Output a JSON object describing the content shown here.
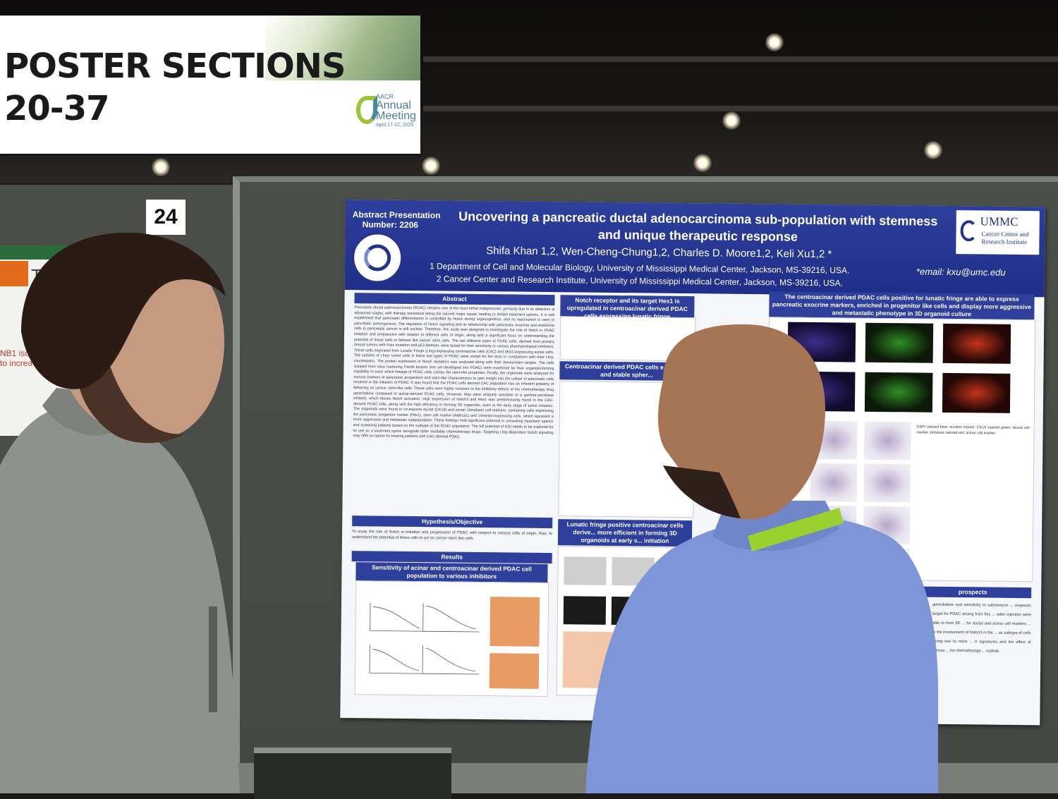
{
  "banner": {
    "line1": "POSTER SECTIONS",
    "line2": "20-37",
    "logo_small": "AACR",
    "logo_line1": "Annual",
    "logo_line2": "Meeting",
    "logo_dates": "April 17-22, 2025"
  },
  "board_number": "24",
  "left_poster": {
    "fragment1": "Th",
    "fragment2": "NB1 isol",
    "fragment3": "to increa"
  },
  "poster": {
    "abstract_label": "Abstract Presentation",
    "abstract_number": "Number: 2206",
    "title_line1": "Uncovering a pancreatic ductal adenocarcinoma sub-population with stemness",
    "title_line2": "and unique therapeutic response",
    "authors": "Shifa Khan 1,2, Wen-Cheng-Chung1,2, Charles D. Moore1,2, Keli Xu1,2 *",
    "affiliation1": "1 Department of Cell and Molecular Biology, University of Mississippi Medical Center, Jackson, MS-39216, USA.",
    "affiliation2": "2 Cancer Center and Research Institute, University of Mississippi Medical Center, Jackson, MS-39216, USA.",
    "email": "*email: kxu@umc.edu",
    "logo_main": "UMMC",
    "logo_sub1": "Cancer Center and",
    "logo_sub2": "Research Institute",
    "sections": {
      "abstract": "Abstract",
      "notch": "Notch receptor and its target Hes1 is upregulated in centroacinar derived PDAC cells expressing lunatic fringe",
      "centroacinar": "Centroacinar derived PDAC cells e... higher and stable spher...",
      "lunatic": "Lunatic fringe positive centroacinar cells derive... more efficient in forming 3D organoids at early s... initiation",
      "express": "The centroacinar derived PDAC cells positive for lunatic fringe are able to express pancreatic exocrine markers, enriched in progenitor like cells and display more aggressive and metastatic phenotype in 3D organoid culture",
      "hypothesis": "Hypothesis/Objective",
      "results": "Results",
      "sensitivity": "Sensitivity of acinar and centroacinar derived PDAC cell population to various inhibitors",
      "prospects": "prospects"
    },
    "abstract_text": "Pancreatic ductal adenocarcinoma (PDAC) remains one of the most lethal malignancies, primarily due to its detection at advanced stages, with therapy resistance being the second major cause, leading to limited treatment options. It is well established that pancreatic differentiation is controlled by Notch during organogenesis, and its reactivation is seen in pancreatic tumorigenesis. The regulation of Notch signaling and its relationship with pancreatic exocrine and endocrine cells in pancreatic cancer is still unclear. Therefore, this study was designed to investigate the role of Notch in PDAC initiation and progression with respect to different cells of origin, along with a significant focus on understanding the potential of these cells to behave like cancer stem cells. The two different types of PDAC cells, derived from primary mouse tumors with Kras mutation and p53 deletion, were tested for their sensitivity to various pharmacological inhibitors. These cells originated from Lunatic Fringe (Lfng)-expressing centroacinar cells (CAC) and Mist1-expressing acinar cells. The subsets of Lfng+ tumor cells in these two types of PDAC were sorted for the tests in comparison with their Lfng- counterparts. The protein expression of Notch receptors was analyzed along with their downstream targets. The cells isolated from mice harboring PanIN lesions (not yet developed into PDAC) were examined for their organoid-forming capability to trace which lineage of PDAC cells carries the stem-like properties. Finally, the organoids were analyzed for various markers of pancreatic progenitors and stem-like characteristics to gain insight into the subset of pancreatic cells involved in the initiation of PDAC. It was found that the PDAC cells derived CAC population has an inherent property of behaving as cancer stem-like cells. These cells were highly resistant to the inhibitory effects of the chemotherapy drug gemcitabine compared to acinar-derived PDAC cells. However, they were uniquely sensitive to a gamma-secretase inhibitor, which blocks Notch activation. High expression of Notch3 and Hes1 was predominantly found in the CAC-derived PDAC cells, along with the high efficiency in forming 3D organoids, even at the early stage of tumor initiation. The organoids were found to co-express ductal (CK19) and acinar (Amylase) cell markers, containing cells expressing the pancreatic progenitor marker (Pdx1), stem cell marker (Aldh1a1) and Vimentin-expressing cells, which represent a more aggressive and metastatic subpopulation. These findings hold significant potential in unraveling treatment options and screening patients based on the subtype of the PDAC population. The full potential of GSI needs to be explored for its use as a treatment option alongside other available chemotherapy drugs. Targeting Lfng-dependent Notch signaling may offer an option for treating patients with CAC-derived PDAC.",
    "hypothesis_text": "To study the role of Notch in initiation and progression of PDAC with respect to various cells of origin. Also, to understand the potential of these cells to act as cancer stem like cells.",
    "right_notes": "DAPI stained blue: nuclear marker. CK19 stained green: ductal cell marker. Amylase stained red: acinar cell marker.",
    "prospects_text": "gemcitabine and sensitivity to salinomycin ... erapeutic target for PDAC arising from this ... rafen injection were able to form 3D ... for ductal and acinar cell markers ... to the involvement of Notch3 in the ... as subtype of cells giving rise to more ... e signatures and the effect of various ... for chemotherapy ... nstitute"
  },
  "colors": {
    "poster_header": "#2e3f9c",
    "banner_bg": "#ffffff",
    "panel": "#4a4d48",
    "lanyard": "#9ad12e",
    "shirt_left": "#8f918e",
    "shirt_right": "#7e95d8"
  }
}
